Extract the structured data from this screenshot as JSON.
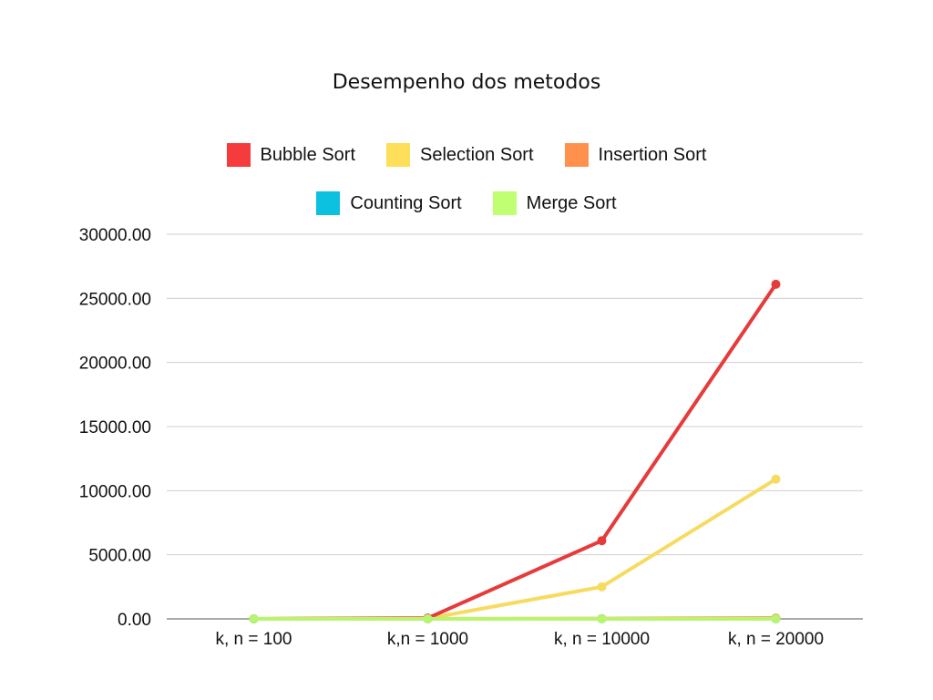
{
  "chart_data": {
    "type": "line",
    "title": "Desempenho dos metodos",
    "categories": [
      "k, n = 100",
      "k,n = 1000",
      "k, n = 10000",
      "k, n = 20000"
    ],
    "ylim": [
      0,
      30000
    ],
    "yticks": [
      "0.00",
      "5000.00",
      "10000.00",
      "15000.00",
      "20000.00",
      "25000.00",
      "30000.00"
    ],
    "grid": true,
    "legend_position": "top",
    "series": [
      {
        "name": "Bubble Sort",
        "color": "#E63B3B",
        "swatch": "#F53B3B",
        "values": [
          0,
          60,
          6100,
          26100
        ]
      },
      {
        "name": "Selection Sort",
        "color": "#F7DB60",
        "swatch": "#FFDE59",
        "values": [
          0,
          30,
          2500,
          10900
        ]
      },
      {
        "name": "Insertion Sort",
        "color": "#FF914D",
        "swatch": "#FF914D",
        "values": [
          0,
          10,
          20,
          60
        ]
      },
      {
        "name": "Counting Sort",
        "color": "#0CC0DF",
        "swatch": "#0CC0DF",
        "values": [
          0,
          0,
          0,
          0
        ]
      },
      {
        "name": "Merge Sort",
        "color": "#B8F56F",
        "swatch": "#C1FF72",
        "values": [
          0,
          0,
          0,
          0
        ]
      }
    ]
  }
}
